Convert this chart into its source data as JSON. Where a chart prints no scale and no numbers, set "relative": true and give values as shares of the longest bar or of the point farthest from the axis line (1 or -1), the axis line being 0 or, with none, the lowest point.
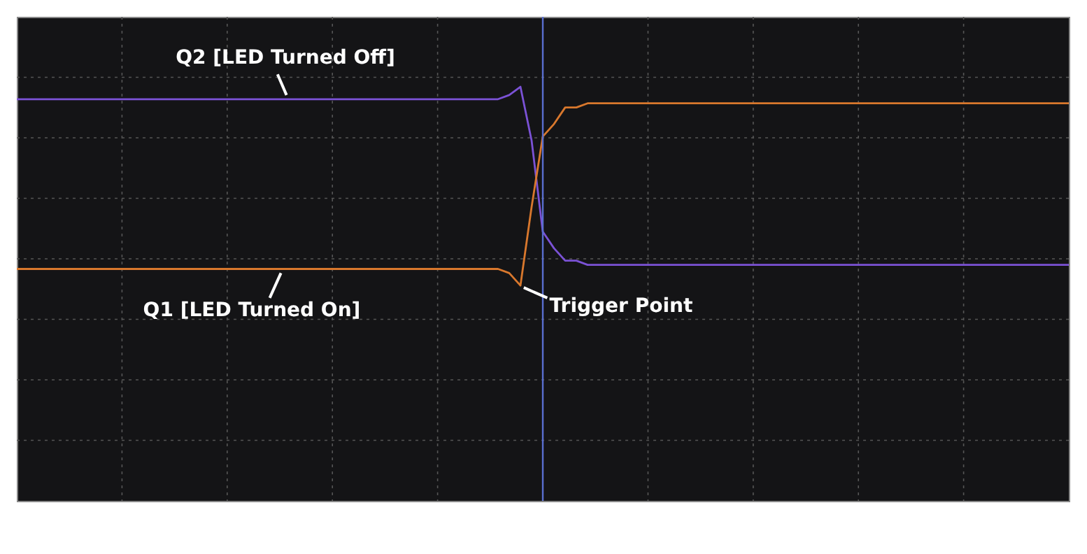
{
  "chart_data": {
    "type": "line",
    "relative": true,
    "categories": [
      null,
      null,
      null,
      null,
      null,
      null,
      null,
      null,
      null,
      null,
      null,
      null,
      null,
      null,
      null,
      null,
      null,
      null,
      null,
      null,
      null,
      null,
      null,
      null,
      null,
      null,
      null,
      null,
      null,
      null,
      null,
      null,
      null,
      null,
      null,
      null,
      null,
      null,
      null,
      null,
      null,
      null,
      null,
      null,
      null,
      null,
      null,
      null,
      null,
      null,
      null,
      null,
      null,
      null,
      null,
      null,
      null,
      null,
      null,
      null,
      null,
      null,
      null,
      null,
      null,
      null,
      null,
      null,
      null,
      null,
      null,
      null,
      null,
      null,
      null,
      null,
      null,
      null,
      null,
      null,
      null,
      null,
      null,
      null,
      null,
      null,
      null,
      null,
      null,
      null,
      null,
      null,
      null,
      null,
      null
    ],
    "series": [
      {
        "name": "Q2 [LED Turned Off]",
        "color": "#7b52d6",
        "values": [
          0.97,
          0.97,
          0.97,
          0.97,
          0.97,
          0.97,
          0.97,
          0.97,
          0.97,
          0.97,
          0.97,
          0.97,
          0.97,
          0.97,
          0.97,
          0.97,
          0.97,
          0.97,
          0.97,
          0.97,
          0.97,
          0.97,
          0.97,
          0.97,
          0.97,
          0.97,
          0.97,
          0.97,
          0.97,
          0.97,
          0.97,
          0.97,
          0.97,
          0.97,
          0.97,
          0.97,
          0.97,
          0.97,
          0.97,
          0.97,
          0.97,
          0.97,
          0.97,
          0.97,
          0.98,
          1.0,
          0.87,
          0.65,
          0.61,
          0.58,
          0.58,
          0.57,
          0.57,
          0.57,
          0.57,
          0.57,
          0.57,
          0.57,
          0.57,
          0.57,
          0.57,
          0.57,
          0.57,
          0.57,
          0.57,
          0.57,
          0.57,
          0.57,
          0.57,
          0.57,
          0.57,
          0.57,
          0.57,
          0.57,
          0.57,
          0.57,
          0.57,
          0.57,
          0.57,
          0.57,
          0.57,
          0.57,
          0.57,
          0.57,
          0.57,
          0.57,
          0.57,
          0.57,
          0.57,
          0.57,
          0.57,
          0.57,
          0.57,
          0.57,
          0.57
        ]
      },
      {
        "name": "Q1 [LED Turned On]",
        "color": "#d9782d",
        "values": [
          0.56,
          0.56,
          0.56,
          0.56,
          0.56,
          0.56,
          0.56,
          0.56,
          0.56,
          0.56,
          0.56,
          0.56,
          0.56,
          0.56,
          0.56,
          0.56,
          0.56,
          0.56,
          0.56,
          0.56,
          0.56,
          0.56,
          0.56,
          0.56,
          0.56,
          0.56,
          0.56,
          0.56,
          0.56,
          0.56,
          0.56,
          0.56,
          0.56,
          0.56,
          0.56,
          0.56,
          0.56,
          0.56,
          0.56,
          0.56,
          0.56,
          0.56,
          0.56,
          0.56,
          0.55,
          0.52,
          0.71,
          0.88,
          0.91,
          0.95,
          0.95,
          0.96,
          0.96,
          0.96,
          0.96,
          0.96,
          0.96,
          0.96,
          0.96,
          0.96,
          0.96,
          0.96,
          0.96,
          0.96,
          0.96,
          0.96,
          0.96,
          0.96,
          0.96,
          0.96,
          0.96,
          0.96,
          0.96,
          0.96,
          0.96,
          0.96,
          0.96,
          0.96,
          0.96,
          0.96,
          0.96,
          0.96,
          0.96,
          0.96,
          0.96,
          0.96,
          0.96,
          0.96,
          0.96,
          0.96,
          0.96,
          0.96,
          0.96,
          0.96,
          0.96
        ]
      }
    ],
    "annotations": [
      "Trigger Point"
    ],
    "grid": true,
    "line_style": "solid",
    "marker": "none"
  }
}
